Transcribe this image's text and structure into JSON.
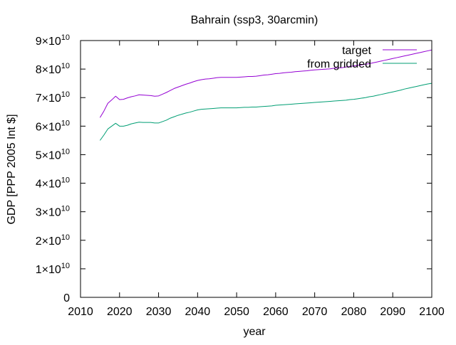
{
  "chart_data": {
    "type": "line",
    "title": "Bahrain (ssp3, 30arcmin)",
    "xlabel": "year",
    "ylabel": "GDP [PPP 2005 Int $]",
    "xlim": [
      2010,
      2100
    ],
    "ylim": [
      0,
      90000000000
    ],
    "xticks": [
      "2010",
      "2020",
      "2030",
      "2040",
      "2050",
      "2060",
      "2070",
      "2080",
      "2090",
      "2100"
    ],
    "yticks": [
      {
        "value": 0,
        "mantissa": "0",
        "exponent": ""
      },
      {
        "value": 10000000000,
        "mantissa": "1×10",
        "exponent": "10"
      },
      {
        "value": 20000000000,
        "mantissa": "2×10",
        "exponent": "10"
      },
      {
        "value": 30000000000,
        "mantissa": "3×10",
        "exponent": "10"
      },
      {
        "value": 40000000000,
        "mantissa": "4×10",
        "exponent": "10"
      },
      {
        "value": 50000000000,
        "mantissa": "5×10",
        "exponent": "10"
      },
      {
        "value": 60000000000,
        "mantissa": "6×10",
        "exponent": "10"
      },
      {
        "value": 70000000000,
        "mantissa": "7×10",
        "exponent": "10"
      },
      {
        "value": 80000000000,
        "mantissa": "8×10",
        "exponent": "10"
      },
      {
        "value": 90000000000,
        "mantissa": "9×10",
        "exponent": "10"
      }
    ],
    "grid": false,
    "legend_position": "top-right",
    "series": [
      {
        "name": "target",
        "color": "#9400d3",
        "x": [
          2015,
          2016,
          2017,
          2018,
          2019,
          2020,
          2021,
          2022,
          2023,
          2024,
          2025,
          2026,
          2027,
          2028,
          2029,
          2030,
          2031,
          2032,
          2033,
          2034,
          2035,
          2036,
          2037,
          2038,
          2039,
          2040,
          2041,
          2042,
          2043,
          2044,
          2045,
          2046,
          2047,
          2048,
          2049,
          2050,
          2051,
          2052,
          2053,
          2054,
          2055,
          2056,
          2057,
          2058,
          2059,
          2060,
          2061,
          2062,
          2063,
          2064,
          2065,
          2066,
          2067,
          2068,
          2069,
          2070,
          2071,
          2072,
          2073,
          2074,
          2075,
          2076,
          2077,
          2078,
          2079,
          2080,
          2081,
          2082,
          2083,
          2084,
          2085,
          2086,
          2087,
          2088,
          2089,
          2090,
          2091,
          2092,
          2093,
          2094,
          2095,
          2096,
          2097,
          2098,
          2099,
          2100
        ],
        "values": [
          63000000000,
          65300000000,
          68000000000,
          69200000000,
          70500000000,
          69300000000,
          69400000000,
          69900000000,
          70300000000,
          70600000000,
          71000000000,
          70900000000,
          70800000000,
          70700000000,
          70500000000,
          70600000000,
          71200000000,
          71800000000,
          72500000000,
          73200000000,
          73700000000,
          74200000000,
          74700000000,
          75100000000,
          75600000000,
          76000000000,
          76300000000,
          76500000000,
          76600000000,
          76800000000,
          77000000000,
          77100000000,
          77100000000,
          77100000000,
          77100000000,
          77100000000,
          77200000000,
          77300000000,
          77400000000,
          77400000000,
          77500000000,
          77700000000,
          77900000000,
          78000000000,
          78200000000,
          78400000000,
          78500000000,
          78700000000,
          78800000000,
          78900000000,
          79100000000,
          79200000000,
          79300000000,
          79400000000,
          79600000000,
          79700000000,
          79800000000,
          79900000000,
          80000000000,
          80100000000,
          80300000000,
          80400000000,
          80500000000,
          80700000000,
          80900000000,
          81100000000,
          81300000000,
          81500000000,
          81700000000,
          81900000000,
          82200000000,
          82500000000,
          82800000000,
          83100000000,
          83400000000,
          83700000000,
          84000000000,
          84300000000,
          84600000000,
          84900000000,
          85200000000,
          85500000000,
          85800000000,
          86100000000,
          86400000000,
          86700000000
        ]
      },
      {
        "name": "from gridded",
        "color": "#009e73",
        "x": [
          2015,
          2016,
          2017,
          2018,
          2019,
          2020,
          2021,
          2022,
          2023,
          2024,
          2025,
          2026,
          2027,
          2028,
          2029,
          2030,
          2031,
          2032,
          2033,
          2034,
          2035,
          2036,
          2037,
          2038,
          2039,
          2040,
          2041,
          2042,
          2043,
          2044,
          2045,
          2046,
          2047,
          2048,
          2049,
          2050,
          2051,
          2052,
          2053,
          2054,
          2055,
          2056,
          2057,
          2058,
          2059,
          2060,
          2061,
          2062,
          2063,
          2064,
          2065,
          2066,
          2067,
          2068,
          2069,
          2070,
          2071,
          2072,
          2073,
          2074,
          2075,
          2076,
          2077,
          2078,
          2079,
          2080,
          2081,
          2082,
          2083,
          2084,
          2085,
          2086,
          2087,
          2088,
          2089,
          2090,
          2091,
          2092,
          2093,
          2094,
          2095,
          2096,
          2097,
          2098,
          2099,
          2100
        ],
        "values": [
          55000000000,
          56900000000,
          59000000000,
          60000000000,
          61000000000,
          60000000000,
          60000000000,
          60300000000,
          60800000000,
          61100000000,
          61400000000,
          61300000000,
          61300000000,
          61300000000,
          61100000000,
          61100000000,
          61600000000,
          62100000000,
          62800000000,
          63300000000,
          63800000000,
          64200000000,
          64600000000,
          64900000000,
          65300000000,
          65700000000,
          65900000000,
          66000000000,
          66100000000,
          66200000000,
          66300000000,
          66400000000,
          66400000000,
          66400000000,
          66400000000,
          66400000000,
          66500000000,
          66600000000,
          66600000000,
          66700000000,
          66700000000,
          66800000000,
          66900000000,
          67000000000,
          67100000000,
          67300000000,
          67400000000,
          67500000000,
          67600000000,
          67700000000,
          67800000000,
          67900000000,
          68000000000,
          68100000000,
          68200000000,
          68300000000,
          68400000000,
          68500000000,
          68600000000,
          68700000000,
          68800000000,
          68900000000,
          69000000000,
          69100000000,
          69300000000,
          69400000000,
          69600000000,
          69800000000,
          70000000000,
          70300000000,
          70500000000,
          70800000000,
          71100000000,
          71400000000,
          71700000000,
          72000000000,
          72300000000,
          72600000000,
          73000000000,
          73300000000,
          73600000000,
          73900000000,
          74200000000,
          74500000000,
          74800000000,
          75000000000
        ]
      }
    ]
  }
}
